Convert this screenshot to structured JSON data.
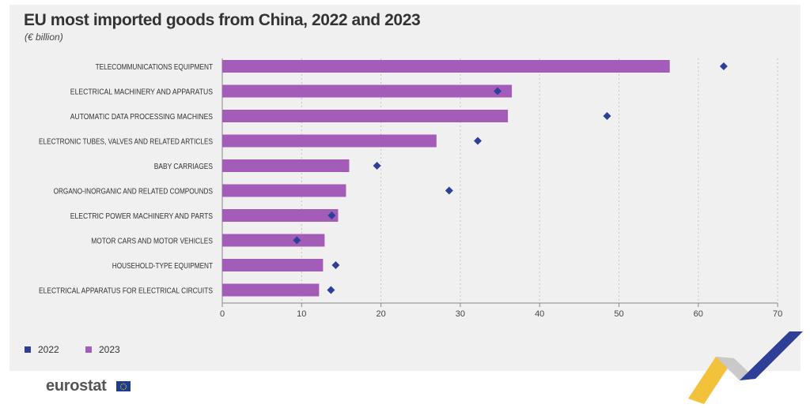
{
  "title": "EU most imported goods from China, 2022 and 2023",
  "subtitle": "(€ billion)",
  "colors": {
    "y2022": "#2e3f98",
    "y2023": "#a35cb8",
    "panel": "#f0f0f0"
  },
  "legend": [
    {
      "label": "2022",
      "color": "#2e3f98"
    },
    {
      "label": "2023",
      "color": "#a35cb8"
    }
  ],
  "logo": {
    "text": "eurostat"
  },
  "chart_data": {
    "type": "bar",
    "orientation": "horizontal",
    "categories": [
      "TELECOMMUNICATIONS EQUIPMENT",
      "ELECTRICAL MACHINERY AND APPARATUS",
      "AUTOMATIC DATA PROCESSING MACHINES",
      "ELECTRONIC TUBES, VALVES AND RELATED ARTICLES",
      "BABY CARRIAGES",
      "ORGANO-INORGANIC AND RELATED COMPOUNDS",
      "ELECTRIC POWER MACHINERY AND PARTS",
      "MOTOR CARS AND MOTOR VEHICLES",
      "HOUSEHOLD-TYPE EQUIPMENT",
      "ELECTRICAL APPARATUS FOR ELECTRICAL CIRCUITS"
    ],
    "series": [
      {
        "name": "2023",
        "mark": "bar",
        "values": [
          56.4,
          36.5,
          36.0,
          27.0,
          16.0,
          15.6,
          14.6,
          12.9,
          12.7,
          12.2
        ]
      },
      {
        "name": "2022",
        "mark": "diamond",
        "values": [
          63.2,
          34.7,
          48.5,
          32.2,
          19.5,
          28.6,
          13.8,
          9.4,
          14.3,
          13.7
        ]
      }
    ],
    "xlim": [
      0,
      70
    ],
    "xticks": [
      0,
      10,
      20,
      30,
      40,
      50,
      60,
      70
    ],
    "grid": true,
    "legend_position": "bottom-left",
    "title": "EU most imported goods from China, 2022 and 2023",
    "xlabel": "",
    "ylabel": ""
  }
}
